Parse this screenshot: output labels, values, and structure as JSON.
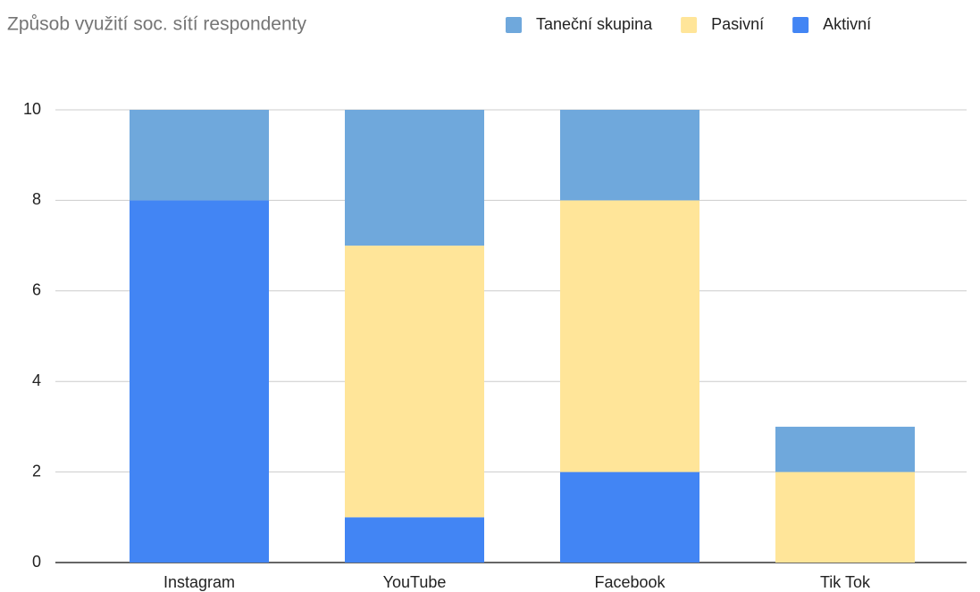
{
  "chart_data": {
    "type": "stacked_bar",
    "title": "Způsob využití soc. sítí respondenty",
    "categories": [
      "Instagram",
      "YouTube",
      "Facebook",
      "Tik Tok"
    ],
    "series": [
      {
        "name": "Taneční skupina",
        "color": "#6fa8dc",
        "values": [
          2,
          3,
          2,
          1
        ]
      },
      {
        "name": "Pasivní",
        "color": "#ffe599",
        "values": [
          0,
          6,
          6,
          2
        ]
      },
      {
        "name": "Aktivní",
        "color": "#4285f4",
        "values": [
          8,
          1,
          2,
          0
        ]
      }
    ],
    "ylim": [
      0,
      10
    ],
    "yticks": [
      0,
      2,
      4,
      6,
      8,
      10
    ],
    "grid": true,
    "legend": "top"
  }
}
